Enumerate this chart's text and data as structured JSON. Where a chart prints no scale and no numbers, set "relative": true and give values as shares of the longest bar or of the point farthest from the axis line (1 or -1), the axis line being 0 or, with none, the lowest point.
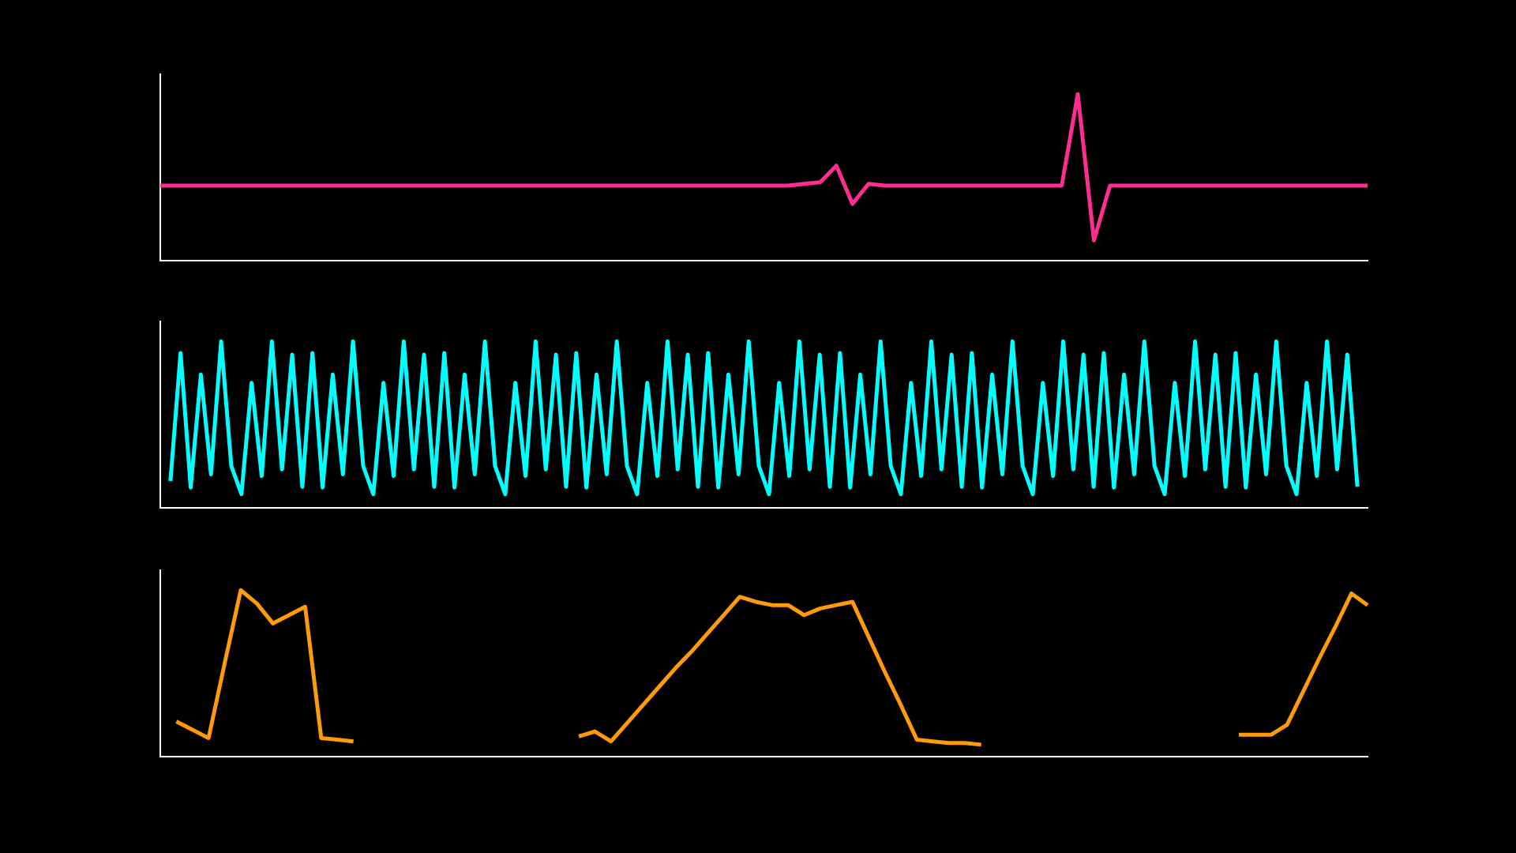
{
  "chart_data": [
    {
      "type": "line",
      "relative": true,
      "categories": [
        null,
        null,
        null,
        null,
        null,
        null,
        null,
        null,
        null,
        null,
        null,
        null,
        null,
        null,
        null,
        null,
        null,
        null,
        null,
        null,
        null,
        null,
        null,
        null,
        null,
        null,
        null,
        null,
        null,
        null,
        null,
        null,
        null,
        null,
        null,
        null,
        null,
        null,
        null,
        null,
        null,
        null,
        null,
        null,
        null,
        null,
        null,
        null,
        null,
        null,
        null,
        null,
        null,
        null,
        null,
        null,
        null,
        null,
        null,
        null,
        null,
        null,
        null,
        null,
        null,
        null,
        null,
        null,
        null,
        null,
        null,
        null,
        null,
        null,
        null,
        null
      ],
      "series": [
        {
          "color": "#ff2d8f",
          "values": [
            0.45,
            0.45,
            0.45,
            0.45,
            0.45,
            0.45,
            0.45,
            0.45,
            0.45,
            0.45,
            0.45,
            0.45,
            0.45,
            0.45,
            0.45,
            0.45,
            0.45,
            0.45,
            0.45,
            0.45,
            0.45,
            0.45,
            0.45,
            0.45,
            0.45,
            0.45,
            0.45,
            0.45,
            0.45,
            0.45,
            0.45,
            0.45,
            0.45,
            0.45,
            0.45,
            0.45,
            0.45,
            0.45,
            0.45,
            0.45,
            0.46,
            0.47,
            0.57,
            0.34,
            0.46,
            0.45,
            0.45,
            0.45,
            0.45,
            0.45,
            0.45,
            0.45,
            0.45,
            0.45,
            0.45,
            0.45,
            0.45,
            1,
            0.12,
            0.45,
            0.45,
            0.45,
            0.45,
            0.45,
            0.45,
            0.45,
            0.45,
            0.45,
            0.45,
            0.45,
            0.45,
            0.45,
            0.45,
            0.45,
            0.45,
            0.45
          ]
        }
      ]
    },
    {
      "type": "line",
      "relative": true,
      "categories": [
        null,
        null,
        null,
        null,
        null,
        null,
        null,
        null,
        null,
        null,
        null,
        null,
        null,
        null,
        null,
        null,
        null,
        null,
        null,
        null,
        null,
        null,
        null,
        null,
        null,
        null,
        null,
        null,
        null,
        null,
        null,
        null,
        null,
        null,
        null,
        null,
        null,
        null,
        null,
        null,
        null,
        null,
        null,
        null,
        null,
        null,
        null,
        null,
        null,
        null,
        null,
        null,
        null,
        null,
        null,
        null,
        null,
        null,
        null,
        null,
        null,
        null,
        null,
        null,
        null,
        null,
        null,
        null,
        null,
        null,
        null,
        null,
        null,
        null,
        null,
        null,
        null,
        null,
        null,
        null,
        null,
        null,
        null,
        null,
        null,
        null,
        null,
        null,
        null,
        null,
        null,
        null,
        null,
        null,
        null,
        null,
        null,
        null,
        null,
        null,
        null,
        null,
        null,
        null,
        null,
        null,
        null,
        null,
        null,
        null,
        null,
        null,
        null,
        null,
        null,
        null,
        null,
        null,
        null,
        null
      ],
      "series": [
        {
          "color": "#00ffff",
          "values": [
            null,
            0.16,
            0.93,
            0.12,
            0.8,
            0.2,
            1,
            0.25,
            0.08,
            0.75,
            0.19,
            1,
            0.23,
            0.92,
            0.125,
            0.93,
            0.12,
            0.8,
            0.2,
            1,
            0.25,
            0.08,
            0.75,
            0.19,
            1,
            0.23,
            0.92,
            0.125,
            0.93,
            0.12,
            0.8,
            0.2,
            1,
            0.25,
            0.08,
            0.75,
            0.19,
            1,
            0.23,
            0.92,
            0.125,
            0.93,
            0.12,
            0.8,
            0.2,
            1,
            0.25,
            0.08,
            0.75,
            0.19,
            1,
            0.23,
            0.92,
            0.125,
            0.93,
            0.12,
            0.8,
            0.2,
            1,
            0.25,
            0.08,
            0.75,
            0.19,
            1,
            0.23,
            0.92,
            0.125,
            0.93,
            0.12,
            0.8,
            0.2,
            1,
            0.25,
            0.08,
            0.75,
            0.19,
            1,
            0.23,
            0.92,
            0.125,
            0.93,
            0.12,
            0.8,
            0.2,
            1,
            0.25,
            0.08,
            0.75,
            0.19,
            1,
            0.23,
            0.92,
            0.125,
            0.93,
            0.12,
            0.8,
            0.2,
            1,
            0.25,
            0.08,
            0.75,
            0.19,
            1,
            0.23,
            0.92,
            0.125,
            0.93,
            0.12,
            0.8,
            0.2,
            1,
            0.25,
            0.08,
            0.75,
            0.19,
            1,
            0.23,
            0.92,
            0.125,
            null
          ]
        }
      ]
    },
    {
      "type": "line",
      "relative": true,
      "categories": [
        null,
        null,
        null,
        null,
        null,
        null,
        null,
        null,
        null,
        null,
        null,
        null,
        null,
        null,
        null,
        null,
        null,
        null,
        null,
        null,
        null,
        null,
        null,
        null,
        null,
        null,
        null,
        null,
        null,
        null,
        null,
        null,
        null,
        null,
        null,
        null,
        null,
        null,
        null,
        null,
        null,
        null,
        null,
        null,
        null,
        null,
        null,
        null,
        null,
        null,
        null,
        null,
        null,
        null,
        null,
        null,
        null,
        null,
        null,
        null,
        null,
        null,
        null,
        null,
        null,
        null,
        null,
        null,
        null,
        null,
        null,
        null,
        null,
        null,
        null,
        null
      ],
      "series": [
        {
          "color": "#ff9a0a",
          "values": [
            null,
            0.21,
            0.16,
            0.11,
            0.56,
            1,
            0.92,
            0.8,
            0.85,
            0.9,
            0.11,
            0.1,
            0.09,
            null,
            null,
            null,
            null,
            null,
            null,
            null,
            null,
            null,
            null,
            null,
            null,
            null,
            0.12,
            0.15,
            0.09,
            0.2,
            0.31,
            0.42,
            0.53,
            0.63,
            0.74,
            0.85,
            0.96,
            0.93,
            0.91,
            0.91,
            0.85,
            0.89,
            0.91,
            0.93,
            0.72,
            0.51,
            0.31,
            0.1,
            0.09,
            0.08,
            0.08,
            0.07,
            null,
            null,
            null,
            null,
            null,
            null,
            null,
            null,
            null,
            null,
            null,
            null,
            null,
            null,
            null,
            0.13,
            0.13,
            0.13,
            0.19,
            0.39,
            0.59,
            0.78,
            0.98,
            0.91
          ]
        }
      ]
    }
  ]
}
